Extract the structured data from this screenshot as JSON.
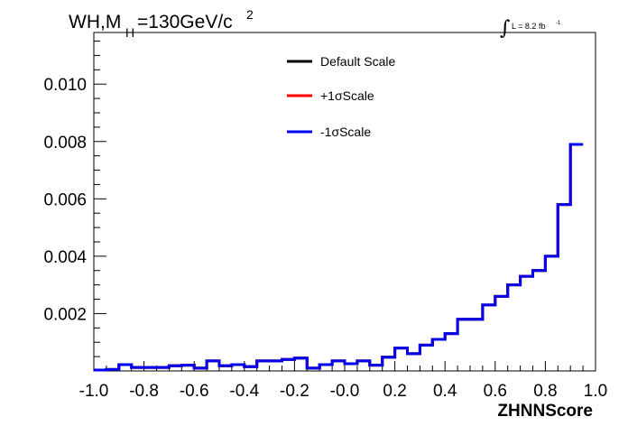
{
  "chart_data": {
    "type": "line",
    "title": "WH,M",
    "title_sub": "H",
    "title_rest": "=130GeV/c",
    "title_sup": "2",
    "lumi_symbol": "∫",
    "lumi_label": "L = 8.2 fb",
    "lumi_sup": "-1",
    "xlabel": "ZHNNScore",
    "ylabel": "",
    "xlim": [
      -1.0,
      1.0
    ],
    "ylim": [
      0,
      0.0118
    ],
    "x_ticks": [
      "-1.0",
      "-0.8",
      "-0.6",
      "-0.4",
      "-0.2",
      "-0.0",
      "0.2",
      "0.4",
      "0.6",
      "0.8",
      "1.0"
    ],
    "y_ticks": [
      "0.002",
      "0.004",
      "0.006",
      "0.008",
      "0.010"
    ],
    "y_tick_values": [
      0.002,
      0.004,
      0.006,
      0.008,
      0.01
    ],
    "bin_edges_start": -1.0,
    "bin_width": 0.05,
    "series": [
      {
        "name": "Default Scale",
        "color": "#000000",
        "values": [
          3e-05,
          5e-05,
          0.00022,
          0.00012,
          0.00012,
          0.00012,
          0.00018,
          0.0002,
          0.0001,
          0.00035,
          0.00018,
          0.00022,
          0.00015,
          0.00035,
          0.00035,
          0.0004,
          0.00045,
          0.0001,
          0.00022,
          0.00035,
          0.00025,
          0.00035,
          0.0002,
          0.00048,
          0.0008,
          0.0006,
          0.0009,
          0.0011,
          0.0013,
          0.0018,
          0.0018,
          0.0023,
          0.0026,
          0.003,
          0.0033,
          0.0035,
          0.004,
          0.0058,
          0.0079
        ]
      },
      {
        "name": "+1σScale",
        "color": "#ff0000",
        "values": [
          3e-05,
          5e-05,
          0.00022,
          0.00012,
          0.00012,
          0.00012,
          0.00018,
          0.0002,
          0.0001,
          0.00035,
          0.00018,
          0.00022,
          0.00015,
          0.00035,
          0.00035,
          0.0004,
          0.00045,
          0.0001,
          0.00022,
          0.00035,
          0.00025,
          0.00035,
          0.0002,
          0.00048,
          0.0008,
          0.0006,
          0.0009,
          0.0011,
          0.0013,
          0.0018,
          0.0018,
          0.0023,
          0.0026,
          0.003,
          0.0033,
          0.0035,
          0.004,
          0.0058,
          0.0079
        ]
      },
      {
        "name": "-1σScale",
        "color": "#0000ee",
        "values": [
          3e-05,
          5e-05,
          0.00022,
          0.00012,
          0.00012,
          0.00012,
          0.00018,
          0.0002,
          0.0001,
          0.00035,
          0.00018,
          0.00022,
          0.00015,
          0.00035,
          0.00035,
          0.0004,
          0.00045,
          0.0001,
          0.00022,
          0.00035,
          0.00025,
          0.00035,
          0.0002,
          0.00048,
          0.0008,
          0.0006,
          0.0009,
          0.0011,
          0.0013,
          0.0018,
          0.0018,
          0.0023,
          0.0026,
          0.003,
          0.0033,
          0.0035,
          0.004,
          0.0058,
          0.0079
        ]
      }
    ],
    "grid": false,
    "legend_position": "top-center"
  }
}
